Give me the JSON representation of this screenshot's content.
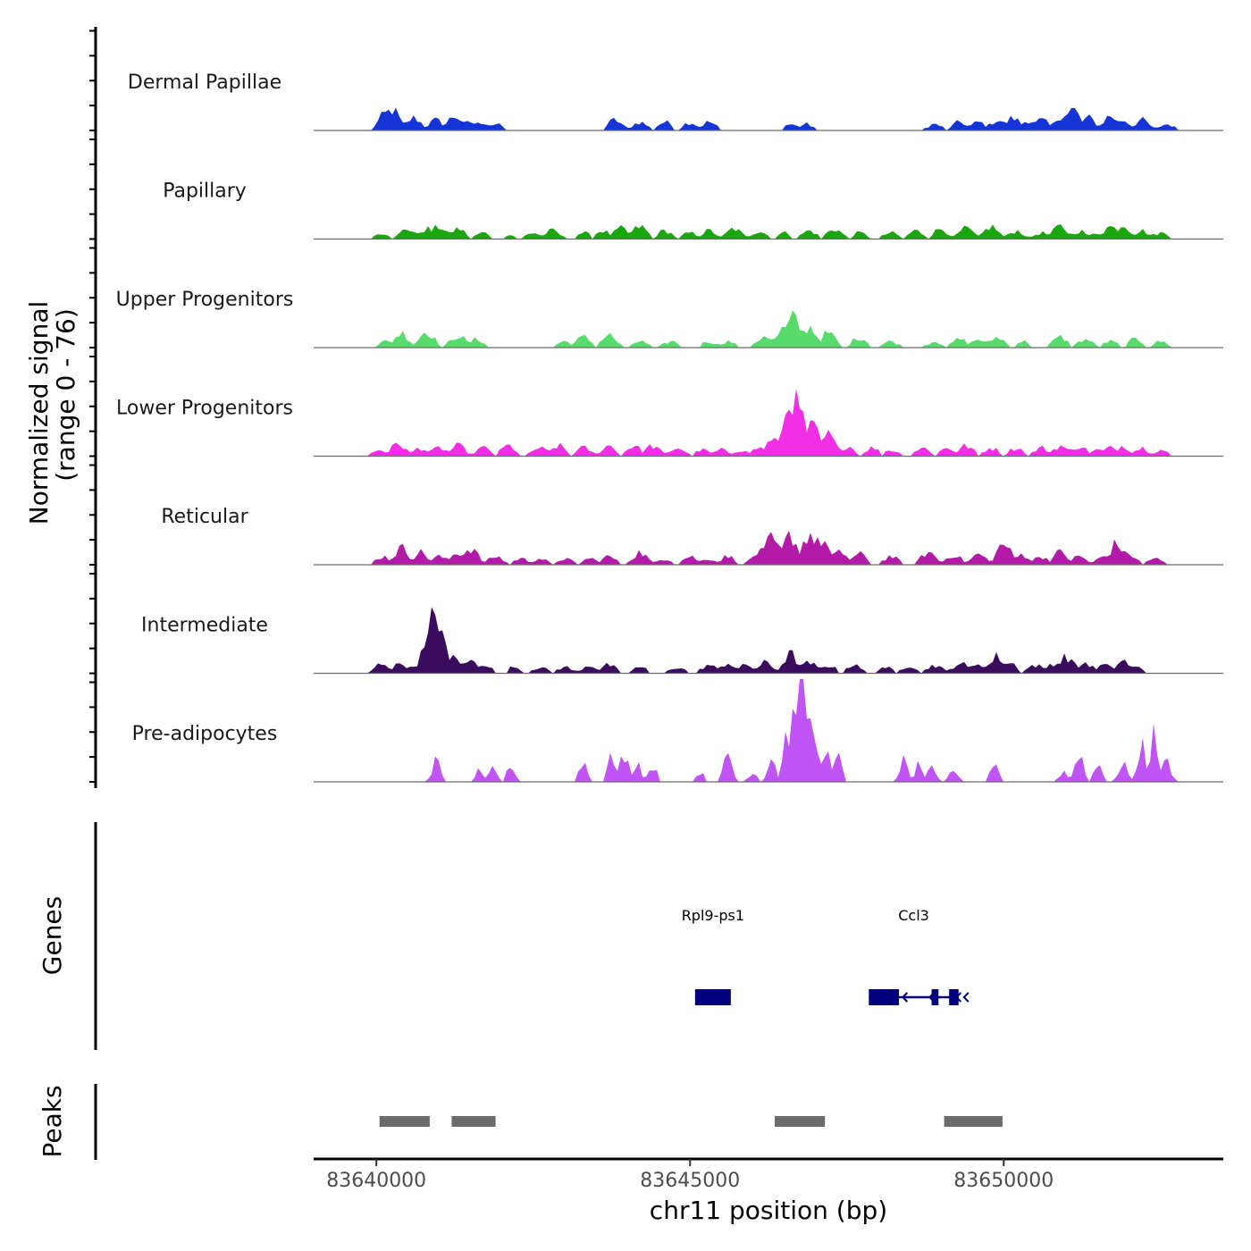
{
  "chart_data": {
    "type": "area",
    "subtype": "genome-coverage-tracks",
    "chromosome": "chr11",
    "xlim": [
      83639000,
      83653500
    ],
    "xlabel": "chr11 position (bp)",
    "x_ticks": [
      83640000,
      83645000,
      83650000
    ],
    "x_tick_labels": [
      "83640000",
      "83645000",
      "83650000"
    ],
    "ylabel_line1": "Normalized signal",
    "ylabel_line2": "(range 0 - 76)",
    "ylim": [
      0,
      76
    ],
    "coverage_tracks": [
      {
        "name": "Dermal Papillae",
        "color": "#1535d9",
        "peaks": [
          [
            83640150,
            8
          ],
          [
            83640250,
            10
          ],
          [
            83640600,
            6
          ],
          [
            83640950,
            5
          ],
          [
            83641250,
            7
          ],
          [
            83641500,
            4
          ],
          [
            83641700,
            4
          ],
          [
            83641900,
            3
          ],
          [
            83643800,
            5
          ],
          [
            83644200,
            4
          ],
          [
            83644600,
            4
          ],
          [
            83645000,
            4
          ],
          [
            83645300,
            4
          ],
          [
            83646600,
            3
          ],
          [
            83646850,
            3
          ],
          [
            83648900,
            3
          ],
          [
            83649300,
            4
          ],
          [
            83649600,
            4
          ],
          [
            83649900,
            5
          ],
          [
            83650150,
            6
          ],
          [
            83650400,
            5
          ],
          [
            83650600,
            5
          ],
          [
            83650950,
            8
          ],
          [
            83651100,
            10
          ],
          [
            83651350,
            6
          ],
          [
            83651700,
            7
          ],
          [
            83651900,
            5
          ],
          [
            83652200,
            5
          ],
          [
            83652600,
            3
          ]
        ]
      },
      {
        "name": "Papillary",
        "color": "#1aa60d",
        "peaks": [
          [
            83640100,
            3
          ],
          [
            83640500,
            5
          ],
          [
            83640800,
            5
          ],
          [
            83641000,
            6
          ],
          [
            83641300,
            5
          ],
          [
            83641700,
            3
          ],
          [
            83642100,
            2
          ],
          [
            83642500,
            3
          ],
          [
            83642800,
            4
          ],
          [
            83643300,
            3
          ],
          [
            83643600,
            4
          ],
          [
            83643900,
            5
          ],
          [
            83644200,
            6
          ],
          [
            83644600,
            4
          ],
          [
            83645000,
            3
          ],
          [
            83645300,
            4
          ],
          [
            83645700,
            5
          ],
          [
            83646100,
            4
          ],
          [
            83646500,
            3
          ],
          [
            83646900,
            4
          ],
          [
            83647300,
            5
          ],
          [
            83647700,
            3
          ],
          [
            83648200,
            3
          ],
          [
            83648600,
            4
          ],
          [
            83649000,
            5
          ],
          [
            83649400,
            5
          ],
          [
            83649800,
            6
          ],
          [
            83650200,
            4
          ],
          [
            83650600,
            3
          ],
          [
            83650900,
            6
          ],
          [
            83651200,
            4
          ],
          [
            83651500,
            3
          ],
          [
            83651700,
            6
          ],
          [
            83651900,
            7
          ],
          [
            83652200,
            4
          ],
          [
            83652500,
            3
          ]
        ]
      },
      {
        "name": "Upper Progenitors",
        "color": "#57db6b",
        "peaks": [
          [
            83640150,
            3
          ],
          [
            83640400,
            7
          ],
          [
            83640800,
            8
          ],
          [
            83641300,
            6
          ],
          [
            83641600,
            4
          ],
          [
            83643000,
            3
          ],
          [
            83643300,
            5
          ],
          [
            83643700,
            6
          ],
          [
            83644200,
            3
          ],
          [
            83644700,
            3
          ],
          [
            83645300,
            3
          ],
          [
            83645600,
            3
          ],
          [
            83646200,
            6
          ],
          [
            83646500,
            9
          ],
          [
            83646650,
            14
          ],
          [
            83646900,
            10
          ],
          [
            83647200,
            7
          ],
          [
            83647700,
            5
          ],
          [
            83648200,
            3
          ],
          [
            83648900,
            3
          ],
          [
            83649300,
            4
          ],
          [
            83649600,
            4
          ],
          [
            83649900,
            5
          ],
          [
            83650300,
            3
          ],
          [
            83650900,
            5
          ],
          [
            83651300,
            4
          ],
          [
            83651700,
            3
          ],
          [
            83652100,
            4
          ],
          [
            83652500,
            3
          ]
        ]
      },
      {
        "name": "Lower Progenitors",
        "color": "#f22ee6",
        "peaks": [
          [
            83640050,
            3
          ],
          [
            83640350,
            6
          ],
          [
            83640700,
            4
          ],
          [
            83641000,
            4
          ],
          [
            83641300,
            5
          ],
          [
            83641700,
            4
          ],
          [
            83642100,
            5
          ],
          [
            83642600,
            4
          ],
          [
            83642900,
            5
          ],
          [
            83643300,
            4
          ],
          [
            83643700,
            5
          ],
          [
            83644100,
            5
          ],
          [
            83644400,
            5
          ],
          [
            83644800,
            4
          ],
          [
            83645200,
            3
          ],
          [
            83645500,
            3
          ],
          [
            83645800,
            3
          ],
          [
            83646100,
            4
          ],
          [
            83646300,
            7
          ],
          [
            83646450,
            10
          ],
          [
            83646620,
            30
          ],
          [
            83646750,
            20
          ],
          [
            83646950,
            14
          ],
          [
            83647200,
            10
          ],
          [
            83647500,
            5
          ],
          [
            83647900,
            4
          ],
          [
            83648200,
            3
          ],
          [
            83648700,
            4
          ],
          [
            83649100,
            4
          ],
          [
            83649400,
            5
          ],
          [
            83649800,
            4
          ],
          [
            83650200,
            4
          ],
          [
            83650600,
            4
          ],
          [
            83650900,
            5
          ],
          [
            83651200,
            5
          ],
          [
            83651500,
            3
          ],
          [
            83651700,
            4
          ],
          [
            83651900,
            5
          ],
          [
            83652200,
            4
          ],
          [
            83652500,
            3
          ]
        ]
      },
      {
        "name": "Reticular",
        "color": "#b31aa8",
        "peaks": [
          [
            83640100,
            4
          ],
          [
            83640400,
            8
          ],
          [
            83640700,
            6
          ],
          [
            83641000,
            4
          ],
          [
            83641300,
            6
          ],
          [
            83641500,
            8
          ],
          [
            83641900,
            4
          ],
          [
            83642300,
            3
          ],
          [
            83642600,
            3
          ],
          [
            83643000,
            3
          ],
          [
            83643400,
            3
          ],
          [
            83643700,
            4
          ],
          [
            83644200,
            6
          ],
          [
            83644600,
            3
          ],
          [
            83645000,
            4
          ],
          [
            83645300,
            3
          ],
          [
            83645600,
            4
          ],
          [
            83646100,
            6
          ],
          [
            83646300,
            12
          ],
          [
            83646600,
            14
          ],
          [
            83646900,
            15
          ],
          [
            83647100,
            12
          ],
          [
            83647400,
            6
          ],
          [
            83647700,
            5
          ],
          [
            83648200,
            4
          ],
          [
            83648800,
            6
          ],
          [
            83649200,
            5
          ],
          [
            83649600,
            5
          ],
          [
            83650000,
            10
          ],
          [
            83650300,
            5
          ],
          [
            83650600,
            4
          ],
          [
            83650900,
            6
          ],
          [
            83651200,
            4
          ],
          [
            83651600,
            4
          ],
          [
            83651800,
            10
          ],
          [
            83652000,
            5
          ],
          [
            83652400,
            3
          ]
        ]
      },
      {
        "name": "Intermediate",
        "color": "#3b0c5e",
        "peaks": [
          [
            83640100,
            5
          ],
          [
            83640400,
            5
          ],
          [
            83640650,
            4
          ],
          [
            83640800,
            12
          ],
          [
            83640950,
            30
          ],
          [
            83641250,
            8
          ],
          [
            83641500,
            6
          ],
          [
            83641700,
            5
          ],
          [
            83642200,
            3
          ],
          [
            83642600,
            3
          ],
          [
            83643000,
            3
          ],
          [
            83643400,
            4
          ],
          [
            83643700,
            4
          ],
          [
            83644200,
            3
          ],
          [
            83644800,
            3
          ],
          [
            83645300,
            4
          ],
          [
            83645600,
            5
          ],
          [
            83645900,
            4
          ],
          [
            83646200,
            5
          ],
          [
            83646600,
            9
          ],
          [
            83646900,
            5
          ],
          [
            83647200,
            4
          ],
          [
            83647600,
            4
          ],
          [
            83648100,
            3
          ],
          [
            83648500,
            4
          ],
          [
            83648900,
            4
          ],
          [
            83649300,
            5
          ],
          [
            83649600,
            5
          ],
          [
            83649900,
            8
          ],
          [
            83650100,
            5
          ],
          [
            83650500,
            4
          ],
          [
            83650800,
            5
          ],
          [
            83651000,
            8
          ],
          [
            83651300,
            5
          ],
          [
            83651600,
            4
          ],
          [
            83651900,
            6
          ],
          [
            83652100,
            3
          ]
        ]
      },
      {
        "name": "Pre-adipocytes",
        "color": "#c154f5",
        "peaks": [
          [
            83640950,
            10
          ],
          [
            83641650,
            6
          ],
          [
            83641850,
            6
          ],
          [
            83642150,
            9
          ],
          [
            83643300,
            10
          ],
          [
            83643750,
            12
          ],
          [
            83643950,
            14
          ],
          [
            83644150,
            10
          ],
          [
            83644400,
            8
          ],
          [
            83645150,
            5
          ],
          [
            83645600,
            15
          ],
          [
            83646000,
            5
          ],
          [
            83646300,
            12
          ],
          [
            83646550,
            25
          ],
          [
            83646700,
            48
          ],
          [
            83646800,
            60
          ],
          [
            83646950,
            28
          ],
          [
            83647150,
            18
          ],
          [
            83647350,
            12
          ],
          [
            83648400,
            10
          ],
          [
            83648650,
            8
          ],
          [
            83648850,
            6
          ],
          [
            83649200,
            6
          ],
          [
            83649850,
            10
          ],
          [
            83650950,
            5
          ],
          [
            83651200,
            15
          ],
          [
            83651500,
            10
          ],
          [
            83651900,
            10
          ],
          [
            83652200,
            18
          ],
          [
            83652400,
            22
          ],
          [
            83652600,
            10
          ]
        ]
      }
    ],
    "genes_track_label": "Genes",
    "genes": [
      {
        "name": "Rpl9-ps1",
        "start": 83645080,
        "end": 83645650,
        "strand": "none",
        "exons": [
          [
            83645080,
            83645650
          ]
        ]
      },
      {
        "name": "Ccl3",
        "start": 83647850,
        "end": 83649280,
        "strand": "-",
        "exons": [
          [
            83647850,
            83648330
          ],
          [
            83648850,
            83648960
          ],
          [
            83649130,
            83649280
          ]
        ]
      }
    ],
    "peaks_track_label": "Peaks",
    "peak_regions": [
      [
        83640050,
        83640850
      ],
      [
        83641200,
        83641900
      ],
      [
        83646350,
        83647150
      ],
      [
        83649050,
        83649980
      ]
    ]
  }
}
